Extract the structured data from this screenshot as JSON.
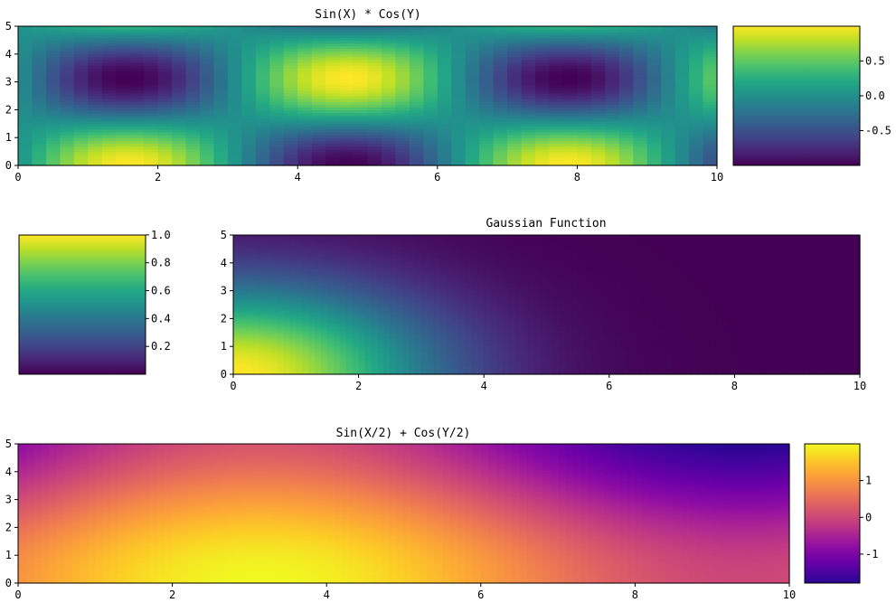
{
  "chart_data": [
    {
      "type": "heatmap",
      "title": "Sin(X) * Cos(Y)",
      "function": "sin(x)*cos(y)",
      "colormap": "viridis",
      "xlim": [
        0,
        10
      ],
      "ylim": [
        0,
        5
      ],
      "xticks": [
        "0",
        "2",
        "4",
        "6",
        "8",
        "10"
      ],
      "yticks": [
        "0",
        "1",
        "2",
        "3",
        "4",
        "5"
      ],
      "value_range": [
        -1,
        1
      ],
      "grid_resolution": [
        50,
        50
      ],
      "colorbar": {
        "side": "right",
        "ticks": [
          "0.5",
          "0.0",
          "-0.5"
        ]
      }
    },
    {
      "type": "heatmap",
      "title": "Gaussian Function",
      "function": "exp(-(x^2+y^2)/10)",
      "colormap": "viridis",
      "xlim": [
        0,
        10
      ],
      "ylim": [
        0,
        5
      ],
      "xticks": [
        "0",
        "2",
        "4",
        "6",
        "8",
        "10"
      ],
      "yticks": [
        "0",
        "1",
        "2",
        "3",
        "4",
        "5"
      ],
      "value_range": [
        0,
        1
      ],
      "grid_resolution": [
        100,
        100
      ],
      "colorbar": {
        "side": "left",
        "ticks": [
          "1.0",
          "0.8",
          "0.6",
          "0.4",
          "0.2"
        ]
      }
    },
    {
      "type": "heatmap",
      "title": "Sin(X/2) + Cos(Y/2)",
      "function": "sin(x/2)+cos(y/2)",
      "colormap": "plasma",
      "xlim": [
        0,
        10
      ],
      "ylim": [
        0,
        5
      ],
      "xticks": [
        "0",
        "2",
        "4",
        "6",
        "8",
        "10"
      ],
      "yticks": [
        "0",
        "1",
        "2",
        "3",
        "4",
        "5"
      ],
      "value_range": [
        -2,
        2
      ],
      "grid_resolution": [
        100,
        100
      ],
      "colorbar": {
        "side": "right",
        "ticks": [
          "1",
          "0",
          "-1"
        ]
      }
    }
  ]
}
